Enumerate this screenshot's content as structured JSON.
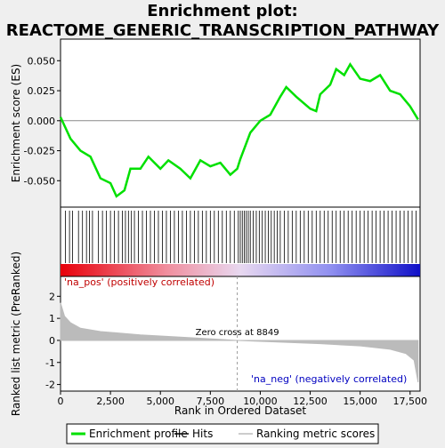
{
  "title_lines": [
    "Enrichment plot:",
    "REACTOME_GENERIC_TRANSCRIPTION_PATHWAY"
  ],
  "legend": [
    {
      "name": "Enrichment profile",
      "color": "#00e000"
    },
    {
      "name": "Hits",
      "color": "#000000"
    },
    {
      "name": "Ranking metric scores",
      "color": "#bbbbbb"
    }
  ],
  "chart_data": [
    {
      "type": "line",
      "y_label": "Enrichment score (ES)",
      "color": "#00e000",
      "xlim": [
        0,
        18000
      ],
      "ylim": [
        -0.072,
        0.068
      ],
      "yticks": [
        {
          "value": 0.05,
          "label": "0.050"
        },
        {
          "value": 0.025,
          "label": "0.025"
        },
        {
          "value": 0,
          "label": "0.000"
        },
        {
          "value": -0.025,
          "label": "-0.025"
        },
        {
          "value": -0.05,
          "label": "-0.050"
        }
      ],
      "x": [
        0,
        500,
        1000,
        1500,
        2000,
        2500,
        2800,
        3200,
        3500,
        4000,
        4400,
        5000,
        5400,
        6000,
        6500,
        7000,
        7500,
        8000,
        8500,
        8849,
        9000,
        9500,
        10000,
        10500,
        11000,
        11300,
        11800,
        12500,
        12800,
        13000,
        13500,
        13800,
        14200,
        14500,
        15000,
        15500,
        16000,
        16500,
        17000,
        17500,
        17900
      ],
      "values": [
        0.003,
        -0.015,
        -0.025,
        -0.03,
        -0.048,
        -0.052,
        -0.063,
        -0.058,
        -0.04,
        -0.04,
        -0.03,
        -0.04,
        -0.033,
        -0.04,
        -0.048,
        -0.033,
        -0.038,
        -0.035,
        -0.045,
        -0.04,
        -0.032,
        -0.01,
        0.0,
        0.005,
        0.02,
        0.028,
        0.02,
        0.01,
        0.008,
        0.022,
        0.03,
        0.043,
        0.038,
        0.047,
        0.035,
        0.033,
        0.038,
        0.025,
        0.022,
        0.012,
        0.001
      ]
    },
    {
      "type": "rug",
      "xlim": [
        0,
        18000
      ],
      "x": [
        250,
        450,
        600,
        900,
        1100,
        1300,
        1450,
        1600,
        1900,
        2100,
        2300,
        2500,
        2700,
        2900,
        3100,
        3250,
        3400,
        3550,
        3700,
        3900,
        4100,
        4300,
        4500,
        4700,
        4900,
        5100,
        5300,
        5500,
        5700,
        5900,
        6100,
        6300,
        6500,
        6700,
        6900,
        7100,
        7300,
        7500,
        7700,
        7900,
        8100,
        8300,
        8500,
        8700,
        8900,
        9000,
        9100,
        9200,
        9300,
        9400,
        9500,
        9650,
        9800,
        9950,
        10100,
        10250,
        10400,
        10550,
        10700,
        10850,
        11000,
        11200,
        11400,
        11600,
        11800,
        12000,
        12200,
        12400,
        12600,
        12800,
        13000,
        13200,
        13400,
        13600,
        13800,
        14000,
        14200,
        14400,
        14600,
        14800,
        15000,
        15200,
        15400,
        15600,
        15800,
        16000,
        16200,
        16400,
        16600,
        16800,
        17000,
        17200,
        17400,
        17600,
        17800
      ]
    },
    {
      "type": "area",
      "x_label": "Rank in Ordered Dataset",
      "y_label": "Ranked list metric (PreRanked)",
      "color": "#bbbbbb",
      "xlim": [
        0,
        18000
      ],
      "ylim": [
        -2.3,
        2.9
      ],
      "xticks": [
        0,
        {
          "value": 2500,
          "label": "2,500"
        },
        {
          "value": 5000,
          "label": "5,000"
        },
        {
          "value": 7500,
          "label": "7,500"
        },
        {
          "value": 10000,
          "label": "10,000"
        },
        {
          "value": 12500,
          "label": "12,500"
        },
        {
          "value": 15000,
          "label": "15,000"
        },
        {
          "value": 17500,
          "label": "17,500"
        }
      ],
      "yticks": [
        2,
        1,
        0,
        -1,
        -2
      ],
      "x": [
        0,
        200,
        500,
        1000,
        2000,
        4000,
        6000,
        8849,
        11000,
        13000,
        15000,
        16500,
        17300,
        17700,
        17900
      ],
      "values": [
        1.7,
        1.1,
        0.8,
        0.55,
        0.4,
        0.25,
        0.15,
        0,
        -0.08,
        -0.15,
        -0.25,
        -0.4,
        -0.6,
        -0.9,
        -1.9
      ],
      "zero_cross": 8849,
      "annotations": [
        "'na_pos' (positively correlated)",
        "Zero cross at 8849",
        "'na_neg' (negatively correlated)"
      ]
    }
  ]
}
